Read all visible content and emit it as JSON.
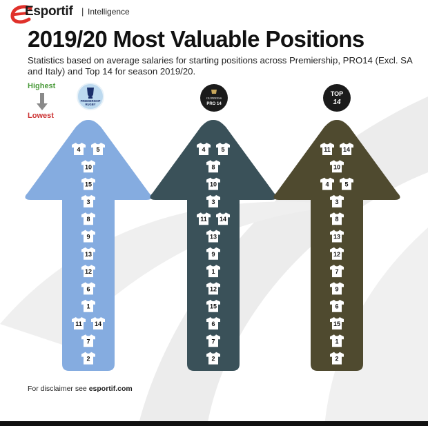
{
  "header": {
    "brand": "Esportif",
    "separator": "|",
    "section": "Intelligence"
  },
  "title": "2019/20 Most Valuable Positions",
  "subtitle": "Statistics based on average salaries for starting positions across Premiership, PRO14 (Excl. SA and Italy) and Top 14 for season 2019/20.",
  "legend": {
    "highest": "Highest",
    "lowest": "Lowest"
  },
  "colors": {
    "premiership": "#85ace0",
    "pro14": "#3a5159",
    "top14": "#4f4a2f",
    "highest": "#4a9a3a",
    "lowest": "#cc3333"
  },
  "competitions": [
    {
      "logo": "premiership-rugby-logo",
      "logo_text": [
        "PREMIERSHIP",
        "RUGBY"
      ],
      "color": "#85ace0",
      "rows": [
        [
          4,
          5
        ],
        [
          10
        ],
        [
          15
        ],
        [
          3
        ],
        [
          8
        ],
        [
          9
        ],
        [
          13
        ],
        [
          12
        ],
        [
          6
        ],
        [
          1
        ],
        [
          11,
          14
        ],
        [
          7
        ],
        [
          2
        ]
      ]
    },
    {
      "logo": "guinness-pro14-logo",
      "logo_text": [
        "GUINNESS",
        "PRO 14"
      ],
      "color": "#3a5159",
      "rows": [
        [
          4,
          5
        ],
        [
          8
        ],
        [
          10
        ],
        [
          3
        ],
        [
          11,
          14
        ],
        [
          13
        ],
        [
          9
        ],
        [
          1
        ],
        [
          12
        ],
        [
          15
        ],
        [
          6
        ],
        [
          7
        ],
        [
          2
        ]
      ]
    },
    {
      "logo": "top14-logo",
      "logo_text": [
        "TOP",
        "14"
      ],
      "color": "#4f4a2f",
      "rows": [
        [
          11,
          14
        ],
        [
          10
        ],
        [
          4,
          5
        ],
        [
          3
        ],
        [
          8
        ],
        [
          13
        ],
        [
          12
        ],
        [
          7
        ],
        [
          9
        ],
        [
          6
        ],
        [
          15
        ],
        [
          1
        ],
        [
          2
        ]
      ]
    }
  ],
  "footer": {
    "text": "For disclaimer see ",
    "link": "esportif.com"
  }
}
